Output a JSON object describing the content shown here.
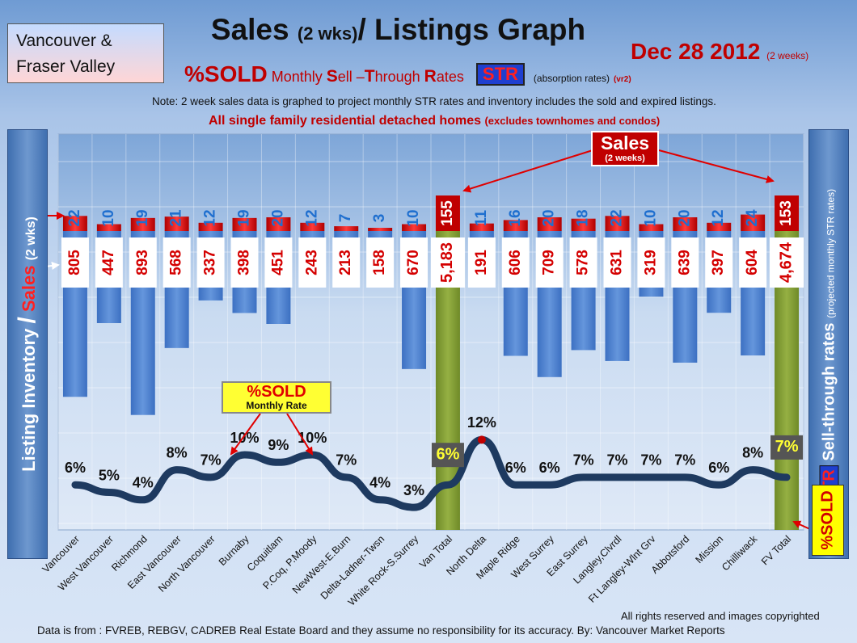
{
  "region": {
    "line1": "Vancouver &",
    "line2": "Fraser Valley"
  },
  "title": {
    "main": "Sales",
    "paren": "(2 wks)",
    "rest": "/ Listings Graph"
  },
  "date": {
    "text": "Dec 28 2012",
    "note": "(2 weeks)"
  },
  "subtitle": {
    "sold": "%SOLD",
    "monthly_pre": "Monthly ",
    "s": "S",
    "ell": "ell –",
    "t": "T",
    "hrough": "hrough ",
    "r": "R",
    "ates": "ates",
    "str": "STR",
    "absorption": "(absorption rates)",
    "version": "(vr2)"
  },
  "note_text": "Note: 2 week sales data is graphed to project monthly STR rates and inventory includes the sold and expired listings.",
  "scope": {
    "main": "All single family residential detached homes",
    "sub": "(excludes townhomes and condos)"
  },
  "left_axis": {
    "part1": "Listing Inventory",
    "slash": "/",
    "sales": "Sales",
    "part2": "(2 wks)"
  },
  "right_axis": {
    "str": "STR",
    "label": "Sell-through rates",
    "sub": "(projected monthly STR rates)"
  },
  "sold_tag": "%SOLD",
  "sold_callout": {
    "line1": "%SOLD",
    "line2": "Monthly Rate"
  },
  "sales_callout": {
    "line1": "Sales",
    "line2": "(2 weeks)"
  },
  "copyright": "All rights reserved and  images copyrighted",
  "footer": "Data is  from : FVREB, REBGV, CADREB Real Estate Board and they assume no responsibility  for its accuracy. By: Vancouver Market Reports",
  "colors": {
    "inventory_bar": "#4a7fcf",
    "total_bar": "#7e9a32",
    "sales_bar": "#d40000",
    "str_line": "#1e3a60",
    "sales_label": "#1f6fcf",
    "inventory_label": "#d40000"
  },
  "chart_data": {
    "type": "bar",
    "categories": [
      "Vancouver",
      "West Vancouver",
      "Richmond",
      "East Vancouver",
      "North Vancouver",
      "Burnaby",
      "Coquitlam",
      "P.Coq, P.Moody",
      "NewWest-E.Burn",
      "Delta-Ladner-Twsn",
      "White Rock-S.Surrey",
      "Van Total",
      "North Delta",
      "Maple Ridge",
      "West Surrey",
      "East Surrey",
      "Langley,Clvrdl",
      "Ft Langley-Wlnt Grv",
      "Abbotsford",
      "Mission",
      "Chilliwack",
      "FV Total"
    ],
    "series": [
      {
        "name": "Listing Inventory",
        "values": [
          805,
          447,
          893,
          568,
          337,
          398,
          451,
          243,
          213,
          158,
          670,
          5183,
          191,
          606,
          709,
          578,
          631,
          319,
          639,
          397,
          604,
          4674
        ],
        "labels": [
          "805",
          "447",
          "893",
          "568",
          "337",
          "398",
          "451",
          "243",
          "213",
          "158",
          "670",
          "5,183",
          "191",
          "606",
          "709",
          "578",
          "631",
          "319",
          "639",
          "397",
          "604",
          "4,674"
        ]
      },
      {
        "name": "Sales",
        "values": [
          22,
          10,
          19,
          21,
          12,
          19,
          20,
          12,
          7,
          3,
          10,
          155,
          11,
          16,
          20,
          18,
          22,
          10,
          20,
          12,
          24,
          153
        ]
      },
      {
        "name": "STR",
        "values": [
          6,
          5,
          4,
          8,
          7,
          10,
          9,
          10,
          7,
          4,
          3,
          6,
          12,
          6,
          6,
          7,
          7,
          7,
          7,
          6,
          8,
          7
        ]
      }
    ],
    "totals": [
      "Van Total",
      "FV Total"
    ]
  }
}
